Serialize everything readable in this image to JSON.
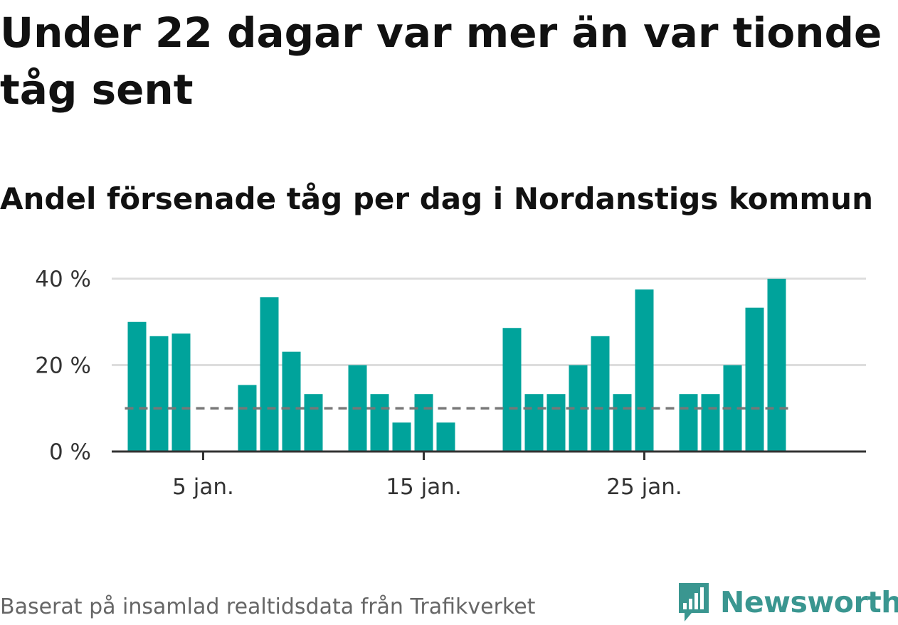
{
  "title": "Under 22 dagar var mer än var tionde tåg sent",
  "subtitle": "Andel försenade tåg per dag i Nordanstigs kommun",
  "source": "Baserat på insamlad realtidsdata från Trafikverket",
  "brand": {
    "name": "Newsworthy",
    "icon": "newsworthy-bar-chart-icon",
    "color": "#3a9690"
  },
  "colors": {
    "bar": "#00a39b",
    "grid": "#dddddd",
    "axis": "#333333",
    "reference": "#777777"
  },
  "chart_data": {
    "type": "bar",
    "title": "Andel försenade tåg per dag i Nordanstigs kommun",
    "xlabel": "",
    "ylabel": "",
    "ylim": [
      0,
      40
    ],
    "yticks": [
      0,
      20,
      40
    ],
    "ytick_labels": [
      "0 %",
      "20 %",
      "40 %"
    ],
    "x_ticks": [
      {
        "day": 5,
        "label": "5 jan."
      },
      {
        "day": 15,
        "label": "15 jan."
      },
      {
        "day": 25,
        "label": "25 jan."
      }
    ],
    "days": [
      2,
      3,
      4,
      5,
      6,
      7,
      8,
      9,
      10,
      11,
      12,
      13,
      14,
      15,
      16,
      17,
      18,
      19,
      20,
      21,
      22,
      23,
      24,
      25,
      26,
      27,
      28,
      29,
      30,
      31,
      32
    ],
    "values": [
      30,
      26.7,
      27.3,
      0,
      0,
      15.4,
      35.7,
      23.1,
      13.3,
      0,
      20,
      13.3,
      6.7,
      13.3,
      6.7,
      0,
      0,
      28.6,
      13.3,
      13.3,
      20,
      26.7,
      13.3,
      37.5,
      0,
      13.3,
      13.3,
      20,
      33.3,
      40,
      0
    ],
    "reference_line": {
      "value": 10,
      "style": "dashed"
    },
    "grid": true,
    "legend": "none"
  }
}
